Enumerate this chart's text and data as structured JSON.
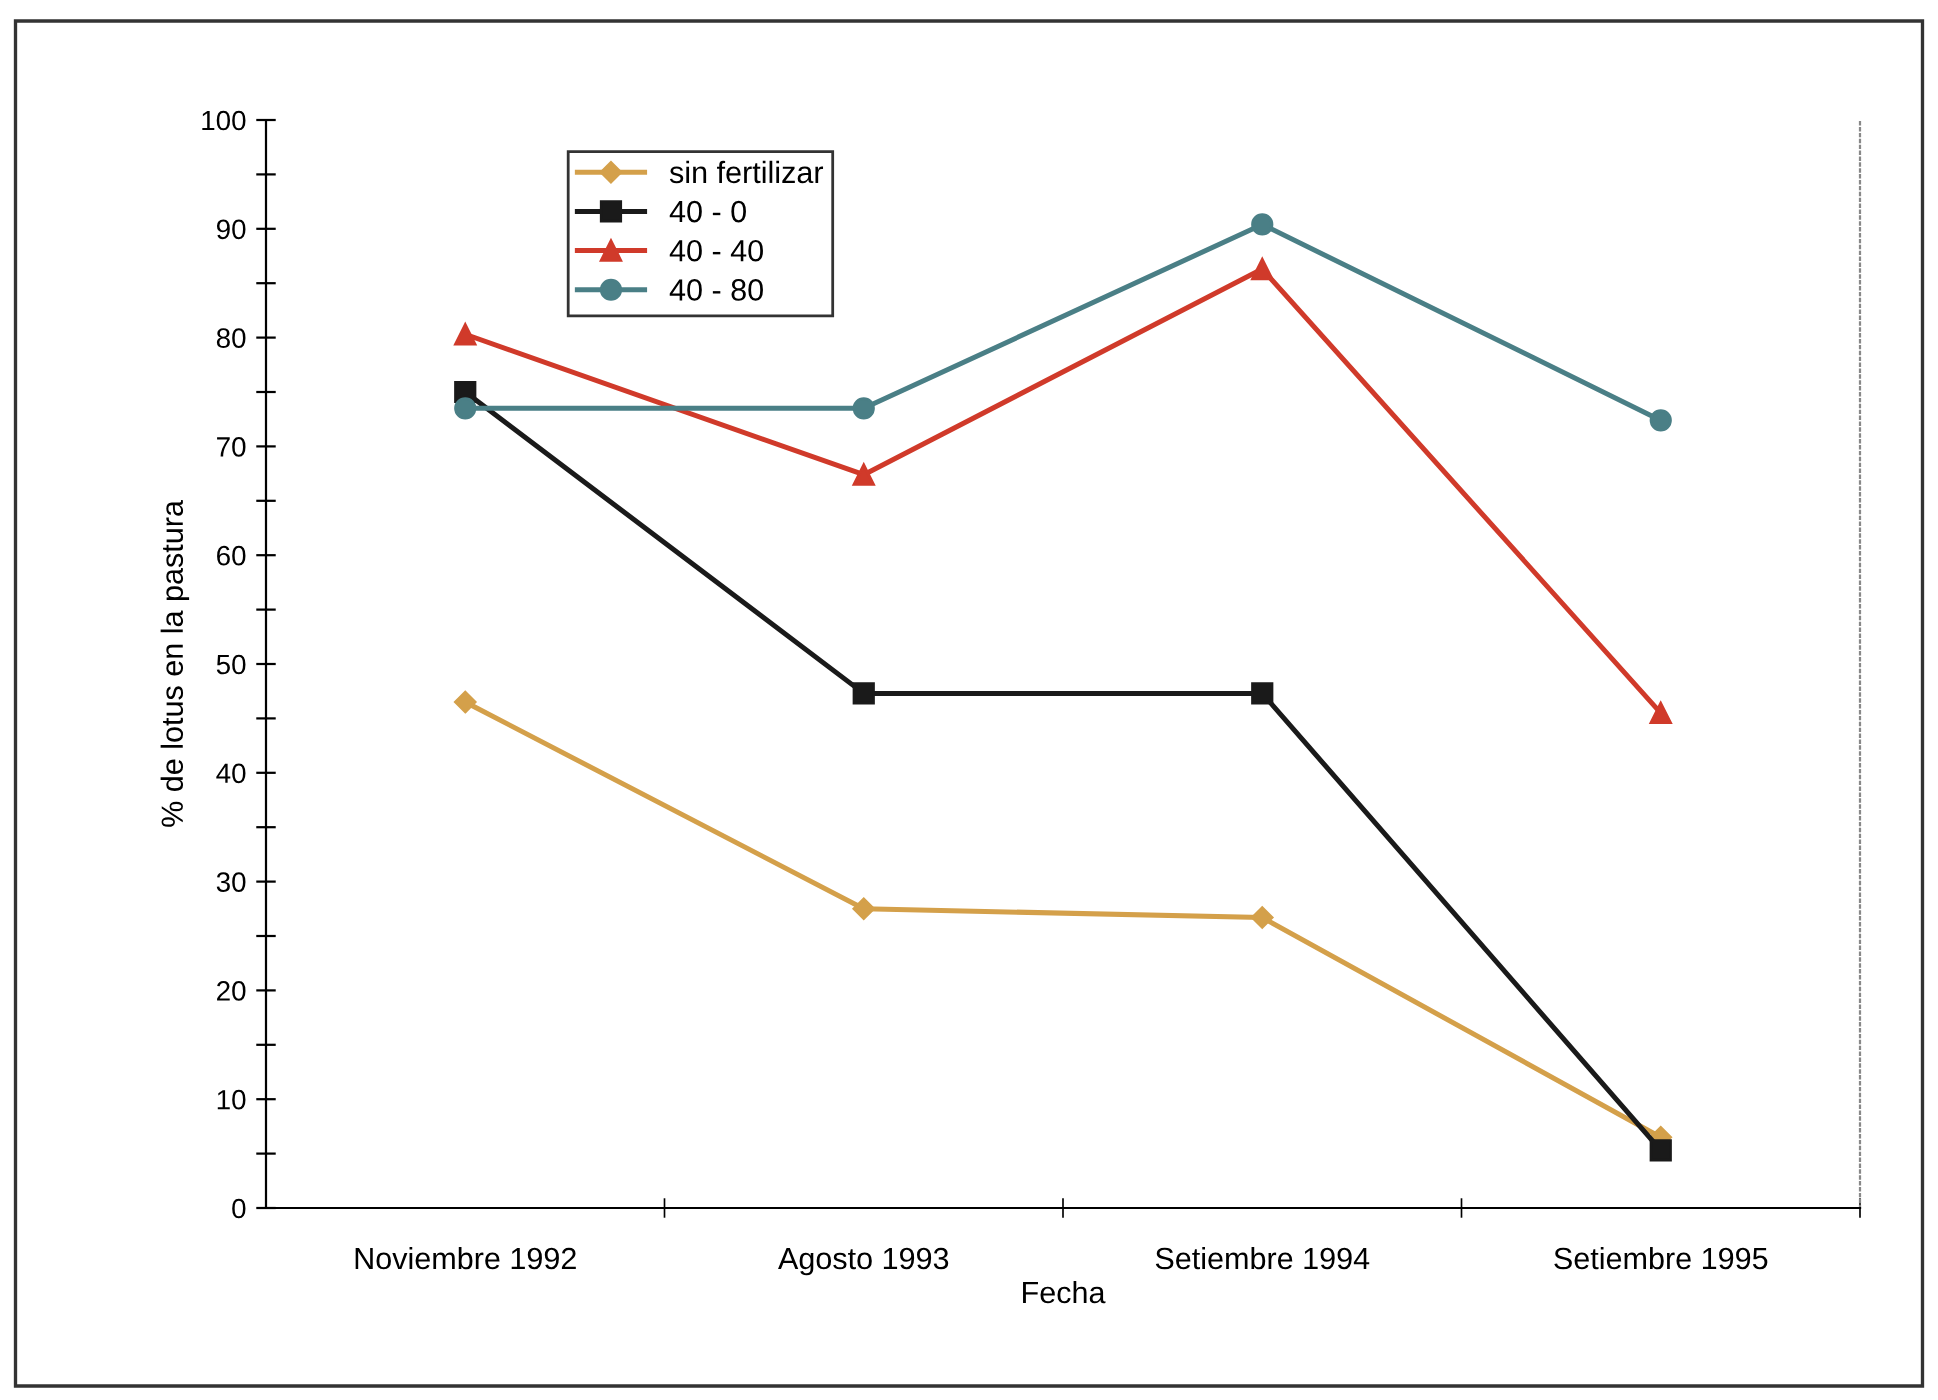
{
  "chart_data": {
    "type": "line",
    "xlabel": "Fecha",
    "ylabel": "% de lotus en la pastura",
    "categories": [
      "Noviembre 1992",
      "Agosto 1993",
      "Setiembre 1994",
      "Setiembre 1995"
    ],
    "series": [
      {
        "name": "sin fertilizar",
        "color": "#d4a04a",
        "marker": "diamond",
        "values": [
          46.5,
          27.5,
          26.7,
          6.5
        ]
      },
      {
        "name": "40 - 0",
        "color": "#1a1a1a",
        "marker": "square",
        "values": [
          75,
          47.3,
          47.3,
          5.3
        ]
      },
      {
        "name": "40 - 40",
        "color": "#d03a2a",
        "marker": "triangle",
        "values": [
          80.3,
          67.4,
          86.3,
          45.5
        ]
      },
      {
        "name": "40 - 80",
        "color": "#4a7f86",
        "marker": "circle",
        "values": [
          73.5,
          73.5,
          90.4,
          72.4
        ]
      }
    ],
    "ylim": [
      0,
      100
    ],
    "yticks": [
      0,
      {
        "value": 5,
        "label": null
      },
      10,
      {
        "value": 15,
        "label": null
      },
      20,
      {
        "value": 25,
        "label": null
      },
      30,
      {
        "value": 35,
        "label": null
      },
      40,
      {
        "value": 45,
        "label": null
      },
      50,
      {
        "value": 55,
        "label": null
      },
      60,
      {
        "value": 65,
        "label": null
      },
      70,
      {
        "value": 75,
        "label": null
      },
      80,
      {
        "value": 85,
        "label": null
      },
      90,
      {
        "value": 95,
        "label": null
      },
      100
    ],
    "grid": false,
    "legend": "top left",
    "line_style": "solid"
  }
}
